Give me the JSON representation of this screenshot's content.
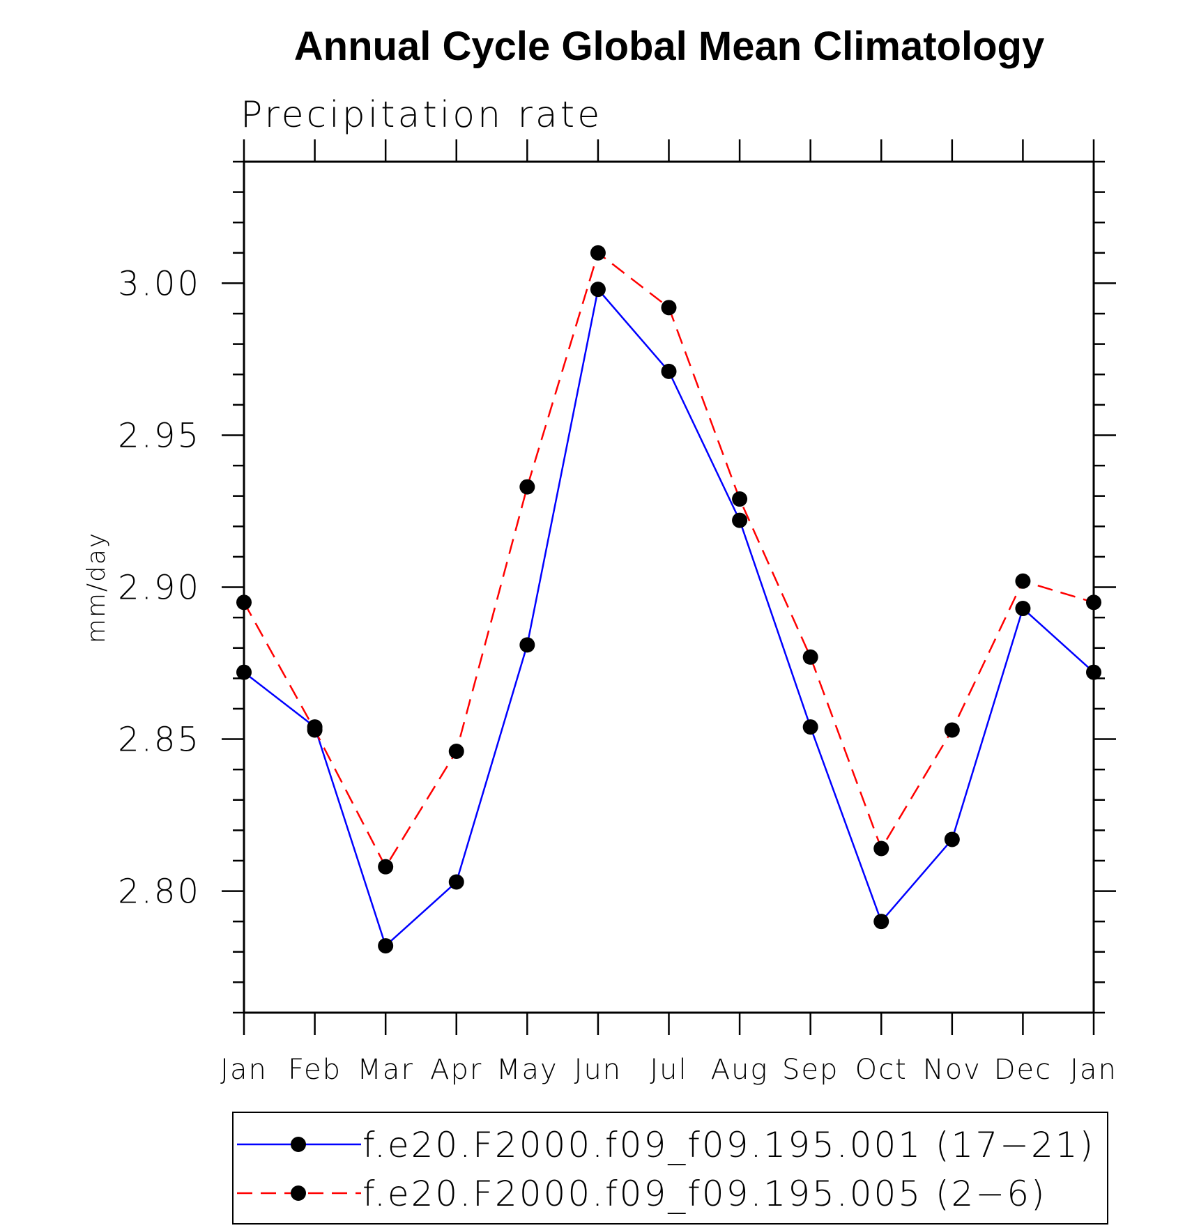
{
  "chart_data": {
    "type": "line",
    "title": "Annual Cycle Global Mean Climatology",
    "subtitle": "Precipitation rate",
    "xlabel": "",
    "ylabel": "mm/day",
    "categories": [
      "Jan",
      "Feb",
      "Mar",
      "Apr",
      "May",
      "Jun",
      "Jul",
      "Aug",
      "Sep",
      "Oct",
      "Nov",
      "Dec",
      "Jan"
    ],
    "ylim": [
      2.76,
      3.04
    ],
    "yticks": [
      "2.80",
      "2.85",
      "2.90",
      "2.95",
      "3.00"
    ],
    "grid": false,
    "legend_placement": "bottom",
    "series": [
      {
        "name": "f.e20.F2000.f09_f09.195.001 (17−21)",
        "color": "#0000ff",
        "dash": "solid",
        "marker": "filled-circle",
        "values": [
          2.872,
          2.854,
          2.782,
          2.803,
          2.881,
          2.998,
          2.971,
          2.922,
          2.854,
          2.79,
          2.817,
          2.893,
          2.872
        ]
      },
      {
        "name": "f.e20.F2000.f09_f09.195.005 (2−6)",
        "color": "#ff0000",
        "dash": "dashed",
        "marker": "filled-circle",
        "values": [
          2.895,
          2.853,
          2.808,
          2.846,
          2.933,
          3.01,
          2.992,
          2.929,
          2.877,
          2.814,
          2.853,
          2.902,
          2.895
        ]
      }
    ]
  }
}
